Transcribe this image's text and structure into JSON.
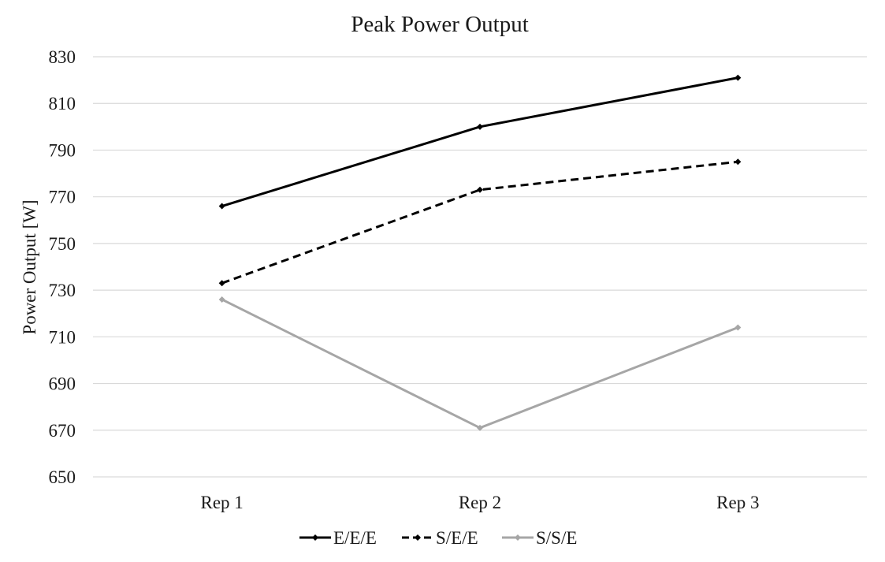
{
  "chart_data": {
    "type": "line",
    "title": "Peak Power Output",
    "xlabel": "",
    "ylabel": "Power Output [W]",
    "categories": [
      "Rep 1",
      "Rep 2",
      "Rep 3"
    ],
    "ylim": [
      650,
      830
    ],
    "yticks": [
      650,
      670,
      690,
      710,
      730,
      750,
      770,
      790,
      810,
      830
    ],
    "grid": true,
    "legend_position": "bottom",
    "series": [
      {
        "name": "E/E/E",
        "values": [
          766,
          800,
          821
        ],
        "color": "#000000",
        "dash": "solid"
      },
      {
        "name": "S/E/E",
        "values": [
          733,
          773,
          785
        ],
        "color": "#000000",
        "dash": "dashed"
      },
      {
        "name": "S/S/E",
        "values": [
          726,
          671,
          714
        ],
        "color": "#a6a6a6",
        "dash": "solid"
      }
    ]
  }
}
